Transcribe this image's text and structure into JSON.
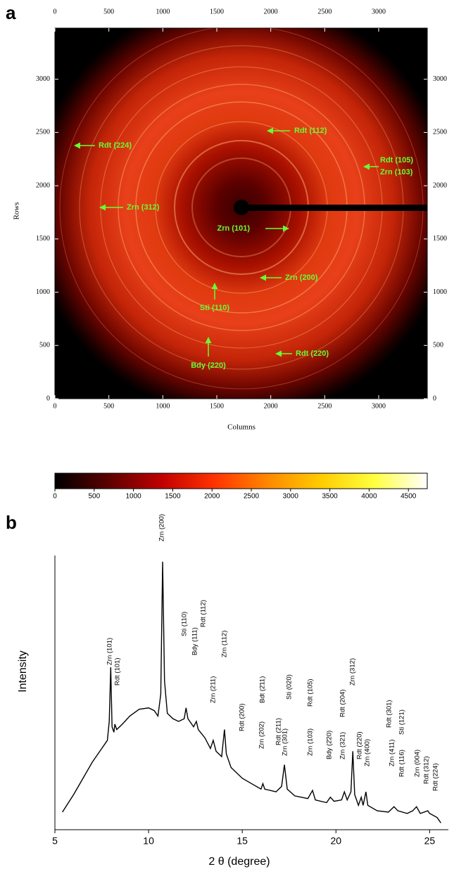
{
  "chart_data": [
    {
      "type": "image",
      "panel": "a",
      "xlabel": "Columns",
      "ylabel": "Rows",
      "xlim": [
        0,
        3450
      ],
      "ylim": [
        0,
        3480
      ],
      "xticks": [
        0,
        500,
        1000,
        1500,
        2000,
        2500,
        3000
      ],
      "yticks": [
        0,
        500,
        1000,
        1500,
        2000,
        2500,
        3000
      ],
      "annotations": [
        "Rdt (224)",
        "Rdt (112)",
        "Rdt (105)",
        "Zrn (103)",
        "Zrn (312)",
        "Zrn (101)",
        "Zrn (200)",
        "Sti (110)",
        "Bdy (220)",
        "Rdt (220)"
      ],
      "annotation_color": "#66ff33"
    },
    {
      "type": "colorbar",
      "xlim": [
        0,
        4740
      ],
      "xticks": [
        0,
        500,
        1000,
        1500,
        2000,
        2500,
        3000,
        3500,
        4000,
        4500
      ],
      "colors": [
        "#000000",
        "#5a0000",
        "#c00000",
        "#ff3300",
        "#ff8800",
        "#ffcc00",
        "#ffff40",
        "#ffffff"
      ]
    },
    {
      "type": "line",
      "panel": "b",
      "xlabel": "2 θ (degree)",
      "ylabel": "Intensity",
      "xlim": [
        5,
        26
      ],
      "xticks": [
        5,
        10,
        15,
        20,
        25
      ],
      "ylim": [
        0,
        100
      ],
      "color": "#000000",
      "x": [
        5.4,
        6.0,
        6.5,
        7.0,
        7.5,
        7.8,
        7.9,
        7.98,
        8.05,
        8.15,
        8.2,
        8.3,
        8.6,
        9.0,
        9.5,
        10.0,
        10.3,
        10.5,
        10.65,
        10.75,
        10.85,
        11.0,
        11.3,
        11.6,
        11.9,
        12.0,
        12.1,
        12.4,
        12.55,
        12.65,
        13.0,
        13.3,
        13.45,
        13.6,
        13.9,
        14.05,
        14.15,
        14.4,
        15.0,
        15.5,
        16.0,
        16.1,
        16.2,
        16.8,
        17.1,
        17.25,
        17.4,
        17.8,
        18.5,
        18.75,
        18.9,
        19.5,
        19.7,
        19.9,
        20.3,
        20.45,
        20.6,
        20.8,
        20.9,
        21.0,
        21.2,
        21.35,
        21.45,
        21.6,
        21.7,
        22.2,
        22.8,
        23.1,
        23.3,
        23.8,
        24.1,
        24.3,
        24.5,
        24.9,
        25.0,
        25.4,
        25.6
      ],
      "values": [
        6.5,
        13,
        19,
        25,
        30,
        33,
        40,
        60,
        38,
        36,
        39,
        37,
        39,
        42,
        44.5,
        45,
        44,
        42,
        50,
        99,
        55,
        43,
        41,
        40,
        41,
        45,
        41,
        38,
        40,
        37,
        34,
        30,
        33,
        29,
        27,
        37,
        28,
        23,
        19,
        17,
        15,
        17,
        15,
        14,
        16,
        24,
        15,
        12.5,
        11.5,
        14.5,
        11,
        10,
        12,
        10.5,
        11,
        14,
        11,
        14,
        29,
        13,
        9,
        12,
        9,
        14,
        9,
        7,
        6.5,
        8.5,
        7,
        6,
        7,
        8.5,
        6,
        7,
        6,
        4.5,
        2.5
      ],
      "annotations": [
        "Zrn (101)",
        "Rdt (101)",
        "Zrn (200)",
        "Sti (110)",
        "Bdy (111)",
        "Rdt (112)",
        "Zrn (211)",
        "Zrn (112)",
        "Rdt (200)",
        "Zrn (202)",
        "Bdt (2̄11)",
        "Rdt (211)",
        "Zrn (301)",
        "Sti (020)",
        "Zrn (103)",
        "Rdt (105)",
        "Bdy (2̄20)",
        "Zrn (321)",
        "Rdt (204)",
        "Zrn (312)",
        "Rdt (220)",
        "Zrn (400)",
        "Zrn (411)",
        "Rdt (301)",
        "Rdt (116)",
        "Sti (121)",
        "Zrn (004)",
        "Rdt (312)",
        "Rdt (224)"
      ]
    }
  ]
}
